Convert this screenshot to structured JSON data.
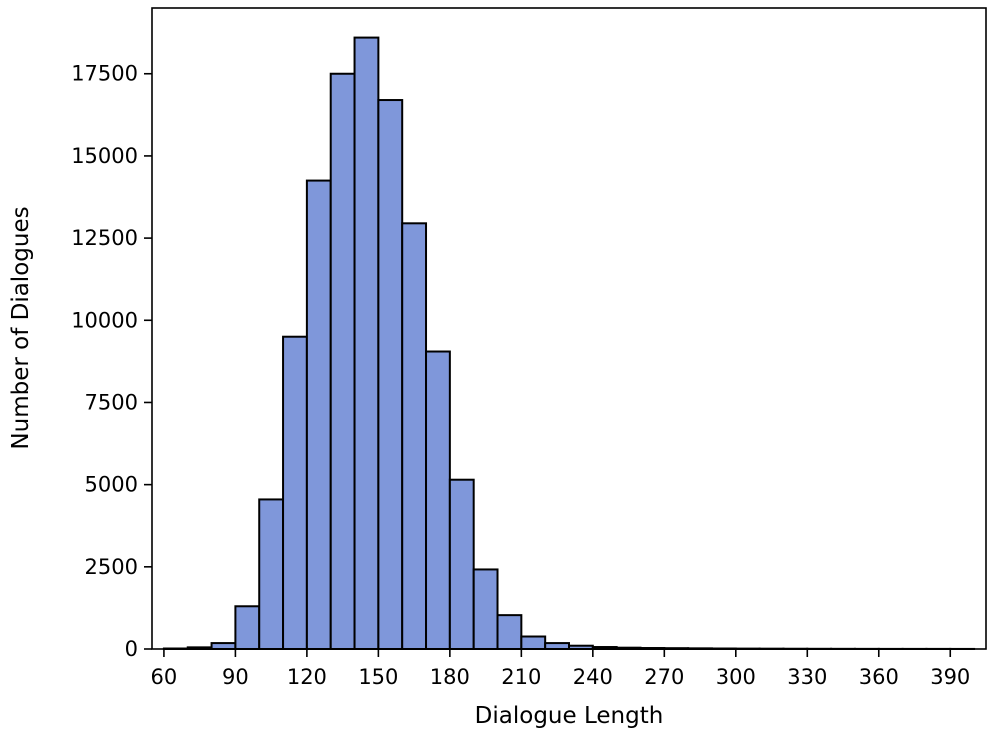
{
  "chart_data": {
    "type": "bar",
    "xlabel": "Dialogue Length",
    "ylabel": "Number of Dialogues",
    "bin_width": 10,
    "bin_starts": [
      60,
      70,
      80,
      90,
      100,
      110,
      120,
      130,
      140,
      150,
      160,
      170,
      180,
      190,
      200,
      210,
      220,
      230,
      240,
      250,
      260,
      270,
      280,
      290,
      300,
      310,
      320,
      330,
      340,
      350,
      360,
      370,
      380,
      390
    ],
    "values": [
      15,
      50,
      180,
      1300,
      4550,
      9500,
      14250,
      17500,
      18600,
      16700,
      12950,
      9050,
      5150,
      2420,
      1030,
      380,
      180,
      100,
      60,
      40,
      30,
      25,
      20,
      15,
      12,
      10,
      8,
      6,
      5,
      4,
      3,
      3,
      3,
      2
    ],
    "bar_color": "#7f97da",
    "edge_color": "#000000",
    "xlim": [
      55,
      405
    ],
    "ylim": [
      0,
      19500
    ],
    "xticks": [
      60,
      90,
      120,
      150,
      180,
      210,
      240,
      270,
      300,
      330,
      360,
      390
    ],
    "yticks": [
      0,
      2500,
      5000,
      7500,
      10000,
      12500,
      15000,
      17500
    ],
    "grid": false
  }
}
